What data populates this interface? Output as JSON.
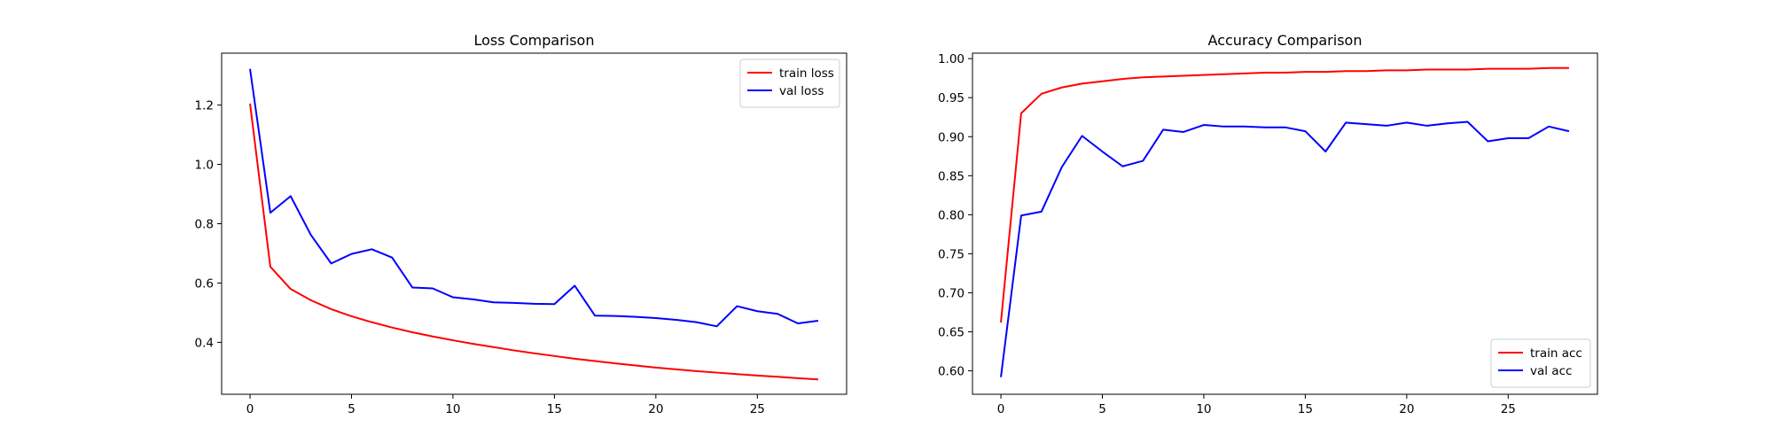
{
  "chart_data": [
    {
      "type": "line",
      "title": "Loss Comparison",
      "xlabel": "",
      "ylabel": "",
      "xlim": [
        -1.4,
        29.4
      ],
      "ylim": [
        0.225,
        1.375
      ],
      "xticks": [
        0,
        5,
        10,
        15,
        20,
        25
      ],
      "yticks": [
        0.4,
        0.6,
        0.8,
        1.0,
        1.2
      ],
      "ytick_labels": [
        "0.4",
        "0.6",
        "0.8",
        "1.0",
        "1.2"
      ],
      "legend_position": "upper right",
      "grid": false,
      "x": [
        0,
        1,
        2,
        3,
        4,
        5,
        6,
        7,
        8,
        9,
        10,
        11,
        12,
        13,
        14,
        15,
        16,
        17,
        18,
        19,
        20,
        21,
        22,
        23,
        24,
        25,
        26,
        27,
        28
      ],
      "series": [
        {
          "name": "train loss",
          "color": "#ff0000",
          "values": [
            1.205,
            0.655,
            0.58,
            0.542,
            0.512,
            0.488,
            0.468,
            0.45,
            0.434,
            0.42,
            0.407,
            0.395,
            0.384,
            0.373,
            0.363,
            0.354,
            0.345,
            0.337,
            0.329,
            0.322,
            0.315,
            0.309,
            0.303,
            0.298,
            0.293,
            0.288,
            0.284,
            0.279,
            0.275
          ]
        },
        {
          "name": "val loss",
          "color": "#0000ff",
          "values": [
            1.322,
            0.837,
            0.893,
            0.762,
            0.666,
            0.698,
            0.714,
            0.686,
            0.585,
            0.582,
            0.552,
            0.545,
            0.535,
            0.533,
            0.53,
            0.529,
            0.591,
            0.49,
            0.489,
            0.486,
            0.482,
            0.476,
            0.468,
            0.454,
            0.522,
            0.505,
            0.496,
            0.464,
            0.473
          ]
        }
      ]
    },
    {
      "type": "line",
      "title": "Accuracy Comparison",
      "xlabel": "",
      "ylabel": "",
      "xlim": [
        -1.4,
        29.4
      ],
      "ylim": [
        0.57,
        1.007
      ],
      "xticks": [
        0,
        5,
        10,
        15,
        20,
        25
      ],
      "yticks": [
        0.6,
        0.65,
        0.7,
        0.75,
        0.8,
        0.85,
        0.9,
        0.95,
        1.0
      ],
      "ytick_labels": [
        "0.60",
        "0.65",
        "0.70",
        "0.75",
        "0.80",
        "0.85",
        "0.90",
        "0.95",
        "1.00"
      ],
      "legend_position": "lower right",
      "grid": false,
      "x": [
        0,
        1,
        2,
        3,
        4,
        5,
        6,
        7,
        8,
        9,
        10,
        11,
        12,
        13,
        14,
        15,
        16,
        17,
        18,
        19,
        20,
        21,
        22,
        23,
        24,
        25,
        26,
        27,
        28
      ],
      "series": [
        {
          "name": "train acc",
          "color": "#ff0000",
          "values": [
            0.662,
            0.93,
            0.955,
            0.963,
            0.968,
            0.971,
            0.974,
            0.976,
            0.977,
            0.978,
            0.979,
            0.98,
            0.981,
            0.982,
            0.982,
            0.983,
            0.983,
            0.984,
            0.984,
            0.985,
            0.985,
            0.986,
            0.986,
            0.986,
            0.987,
            0.987,
            0.987,
            0.988,
            0.988
          ]
        },
        {
          "name": "val acc",
          "color": "#0000ff",
          "values": [
            0.592,
            0.799,
            0.804,
            0.861,
            0.901,
            0.881,
            0.862,
            0.869,
            0.909,
            0.906,
            0.915,
            0.913,
            0.913,
            0.912,
            0.912,
            0.907,
            0.881,
            0.918,
            0.916,
            0.914,
            0.918,
            0.914,
            0.917,
            0.919,
            0.894,
            0.898,
            0.898,
            0.913,
            0.907
          ]
        }
      ]
    }
  ]
}
